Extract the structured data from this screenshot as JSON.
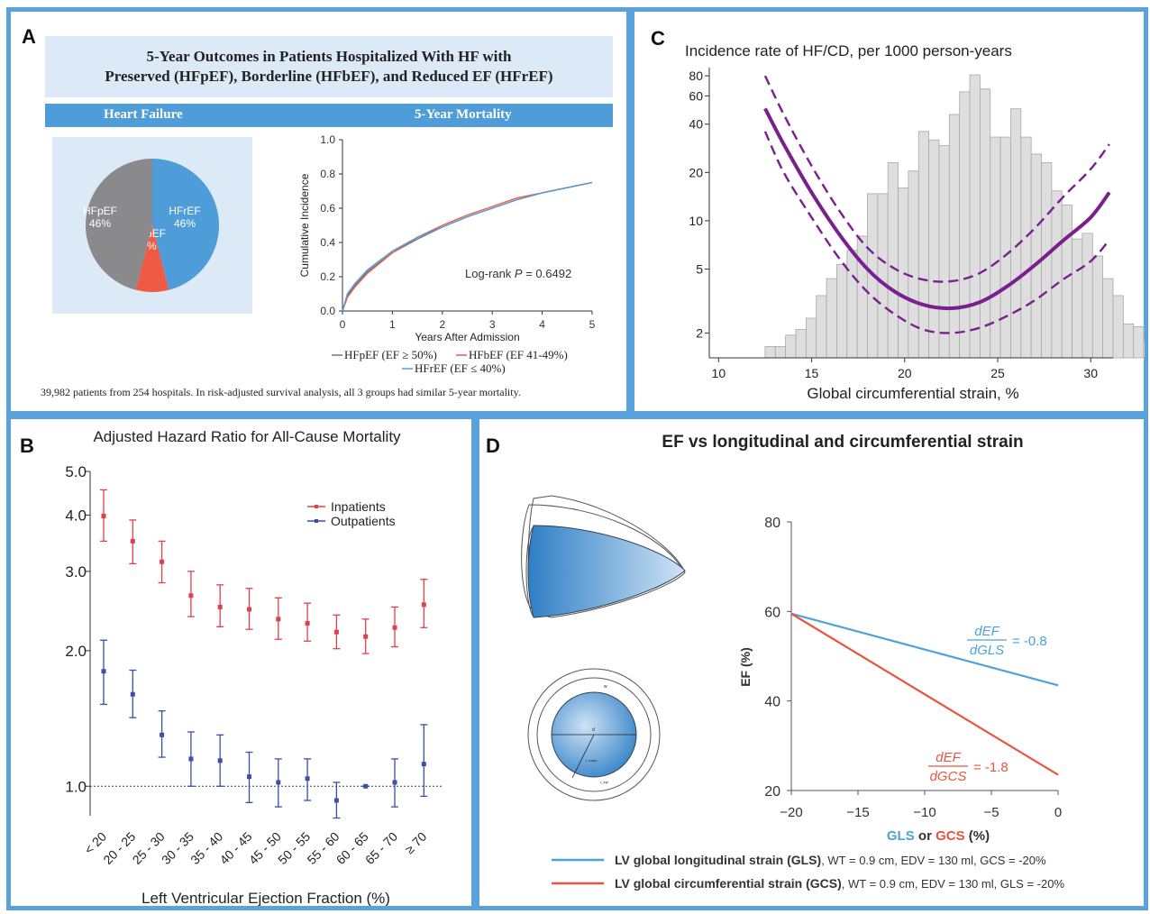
{
  "panels": {
    "A": {
      "letter": "A",
      "title_line1": "5-Year Outcomes in Patients Hospitalized With HF with",
      "title_line2": "Preserved (HFpEF), Borderline (HFbEF), and Reduced EF (HFrEF)",
      "header_left": "Heart Failure",
      "header_right": "5-Year Mortality",
      "footnote": "39,982 patients from 254 hospitals. In risk-adjusted survival analysis, all 3 groups had similar 5-year mortality.",
      "colors": {
        "hfpef": "#8a8a8d",
        "hfref": "#4f9dd8",
        "hfbef": "#ef5a45"
      }
    },
    "B": {
      "letter": "B"
    },
    "C": {
      "letter": "C"
    },
    "D": {
      "letter": "D",
      "diagram_labels": {
        "wall": "w",
        "diameter": "d",
        "r_epi": "r_epi",
        "r_endo": "r_endo"
      }
    }
  },
  "chart_data": [
    {
      "id": "A-pie",
      "type": "pie",
      "slices": [
        {
          "label": "HFrEF",
          "value": 46,
          "display": "46%",
          "color": "#4f9dd8"
        },
        {
          "label": "HFbEF",
          "value": 8,
          "display": "8%",
          "color": "#ef5a45"
        },
        {
          "label": "HFpEF",
          "value": 46,
          "display": "46%",
          "color": "#8a8a8d"
        }
      ]
    },
    {
      "id": "A-curve",
      "type": "line",
      "xlabel": "Years After Admission",
      "ylabel": "Cumulative Incidence",
      "xlim": [
        0,
        5
      ],
      "ylim": [
        0,
        1
      ],
      "xticks": [
        "0",
        "1",
        "2",
        "3",
        "4",
        "5"
      ],
      "yticks": [
        "0.0",
        "0.2",
        "0.4",
        "0.6",
        "0.8",
        "1.0"
      ],
      "annotation_prefix": "Log-rank ",
      "annotation_p": "P",
      "annotation_suffix": " = 0.6492",
      "x": [
        0,
        0.1,
        0.25,
        0.5,
        1,
        1.5,
        2,
        2.5,
        3,
        3.5,
        4,
        4.5,
        5
      ],
      "series": [
        {
          "name": "HFpEF (EF ≥ 50%)",
          "color": "#777777",
          "values": [
            0,
            0.09,
            0.15,
            0.23,
            0.34,
            0.42,
            0.49,
            0.55,
            0.6,
            0.65,
            0.69,
            0.72,
            0.75
          ]
        },
        {
          "name": "HFbEF (EF 41-49%)",
          "color": "#ef5a45",
          "values": [
            0,
            0.08,
            0.14,
            0.22,
            0.34,
            0.43,
            0.5,
            0.56,
            0.61,
            0.66,
            0.69,
            0.72,
            0.75
          ]
        },
        {
          "name": "HFrEF (EF ≤ 40%)",
          "color": "#4f9dd8",
          "values": [
            0,
            0.1,
            0.16,
            0.24,
            0.35,
            0.43,
            0.49,
            0.55,
            0.6,
            0.65,
            0.69,
            0.72,
            0.75
          ]
        }
      ]
    },
    {
      "id": "B",
      "type": "scatter",
      "title": "Adjusted Hazard Ratio for All-Cause Mortality",
      "xlabel": "Left Ventricular Ejection Fraction (%)",
      "ylabel": "",
      "log_y": true,
      "ylim": [
        0.86,
        5.0
      ],
      "yticks": [
        {
          "v": 1.0,
          "label": "1.0"
        },
        {
          "v": 2.0,
          "label": "2.0"
        },
        {
          "v": 3.0,
          "label": "3.0"
        },
        {
          "v": 4.0,
          "label": "4.0"
        },
        {
          "v": 5.0,
          "label": "5.0"
        }
      ],
      "reference_line": 1.0,
      "legend_position": "top-right",
      "categories": [
        "< 20",
        "20 - 25",
        "25 - 30",
        "30 - 35",
        "35 - 40",
        "40 - 45",
        "45 - 50",
        "50 - 55",
        "55 - 60",
        "60 - 65",
        "65 - 70",
        "≥ 70"
      ],
      "series": [
        {
          "name": "Inpatients",
          "color": "#e0404a",
          "values": [
            3.98,
            3.5,
            3.15,
            2.65,
            2.5,
            2.47,
            2.35,
            2.3,
            2.2,
            2.15,
            2.25,
            2.53
          ],
          "lower": [
            3.5,
            3.12,
            2.83,
            2.38,
            2.26,
            2.23,
            2.12,
            2.1,
            2.02,
            1.97,
            2.04,
            2.25
          ],
          "upper": [
            4.55,
            3.9,
            3.5,
            3.0,
            2.8,
            2.75,
            2.62,
            2.55,
            2.4,
            2.35,
            2.5,
            2.88
          ]
        },
        {
          "name": "Outpatients",
          "color": "#3a4fa5",
          "values": [
            1.8,
            1.6,
            1.3,
            1.15,
            1.14,
            1.05,
            1.02,
            1.04,
            0.93,
            1.0,
            1.02,
            1.12
          ],
          "lower": [
            1.52,
            1.42,
            1.16,
            1.0,
            1.0,
            0.92,
            0.9,
            0.93,
            0.85,
            1.0,
            0.9,
            0.95
          ],
          "upper": [
            2.11,
            1.81,
            1.47,
            1.32,
            1.3,
            1.19,
            1.15,
            1.15,
            1.02,
            1.0,
            1.15,
            1.37
          ]
        }
      ]
    },
    {
      "id": "C",
      "type": "line",
      "title": "Incidence rate of HF/CD, per 1000 person-years",
      "xlabel": "Global circumferential strain, %",
      "ylabel": "",
      "log_y": true,
      "xlim": [
        9.5,
        31.2
      ],
      "ylim": [
        1.4,
        90
      ],
      "xticks": [
        10,
        15,
        20,
        25,
        30
      ],
      "yticks": [
        2,
        5,
        10,
        20,
        40,
        60,
        80
      ],
      "histogram": {
        "bin_start": 12.5,
        "bin_width": 0.55,
        "color": "#dedede",
        "counts": [
          4,
          4,
          8,
          10,
          14,
          22,
          28,
          33,
          38,
          43,
          58,
          58,
          69,
          60,
          66,
          80,
          77,
          75,
          86,
          94,
          100,
          95,
          78,
          78,
          88,
          78,
          72,
          69,
          59,
          54,
          42,
          44,
          36,
          28,
          22,
          12,
          11,
          6,
          9,
          5
        ]
      },
      "x": [
        12.5,
        13.5,
        15,
        16.5,
        18,
        19.5,
        21,
        22.5,
        24,
        25.5,
        27,
        28.5,
        30,
        31
      ],
      "series": [
        {
          "name": "estimate",
          "color": "#7a1f8e",
          "style": "solid",
          "values": [
            50,
            30,
            15,
            8.2,
            5.0,
            3.6,
            3.0,
            2.85,
            3.1,
            3.9,
            5.3,
            7.5,
            10.5,
            15
          ]
        },
        {
          "name": "upper",
          "color": "#7a1f8e",
          "style": "dashed",
          "values": [
            80,
            46,
            22,
            11.5,
            6.8,
            5.0,
            4.3,
            4.2,
            4.7,
            6.2,
            9.0,
            14,
            21,
            30
          ]
        },
        {
          "name": "lower",
          "color": "#7a1f8e",
          "style": "dashed",
          "values": [
            36,
            20,
            10.5,
            5.8,
            3.6,
            2.6,
            2.1,
            2.0,
            2.15,
            2.55,
            3.2,
            4.3,
            5.6,
            7.6
          ]
        }
      ]
    },
    {
      "id": "D",
      "type": "line",
      "title": "EF vs longitudinal and circumferential strain",
      "xlabel_parts": [
        {
          "text": "GLS",
          "color": "#4aa3d9"
        },
        {
          "text": " or ",
          "color": "#333333"
        },
        {
          "text": "GCS",
          "color": "#e8553e"
        },
        {
          "text": " (%)",
          "color": "#333333"
        }
      ],
      "ylabel": "EF (%)",
      "xlim": [
        -20,
        0
      ],
      "ylim": [
        20,
        80
      ],
      "xticks": [
        -20,
        -15,
        -10,
        -5,
        0
      ],
      "yticks": [
        20,
        40,
        60,
        80
      ],
      "x": [
        -20,
        0
      ],
      "series": [
        {
          "name": "LV global longitudinal strain (GLS)",
          "legend_suffix": ", WT = 0.9 cm, EDV = 130 ml, GCS = -20%",
          "color": "#4aa3d9",
          "values": [
            59.5,
            43.5
          ],
          "slope_num": "dEF",
          "slope_den": "dGLS",
          "slope_value": "= -0.8"
        },
        {
          "name": "LV global circumferential strain (GCS)",
          "legend_suffix": ", WT = 0.9 cm, EDV = 130 ml, GLS = -20%",
          "color": "#e8553e",
          "values": [
            59.5,
            23.5
          ],
          "slope_num": "dEF",
          "slope_den": "dGCS",
          "slope_value": "= -1.8"
        }
      ]
    }
  ]
}
